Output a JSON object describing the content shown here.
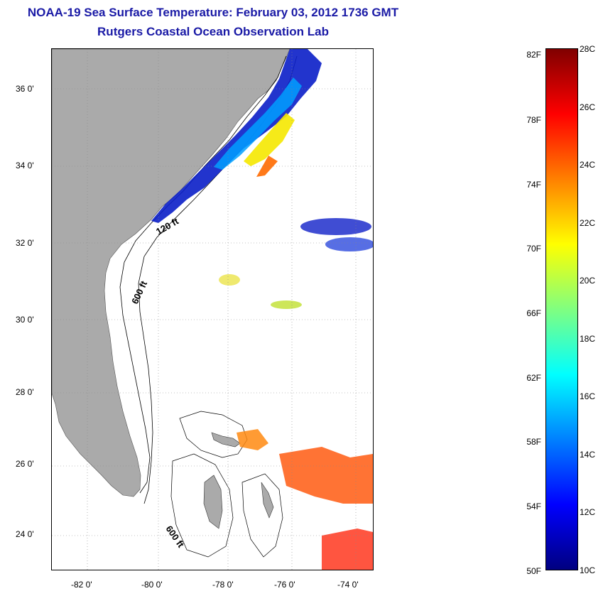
{
  "title": "NOAA-19 Sea Surface Temperature:  February 03, 2012 1736 GMT",
  "subtitle": "Rutgers Coastal Ocean Observation Lab",
  "map": {
    "lat_labels": [
      "36 0'",
      "34 0'",
      "32 0'",
      "30 0'",
      "28 0'",
      "26 0'",
      "24 0'"
    ],
    "lon_labels": [
      "-82 0'",
      "-80 0'",
      "-78 0'",
      "-76 0'",
      "-74 0'"
    ],
    "contour_labels": {
      "shelf_north": "120 ft",
      "slope_north": "600 ft",
      "slope_south": "600 ft"
    },
    "colors": {
      "land": "#aaaaaa",
      "ocean": "#ffffff",
      "grid": "#888888"
    }
  },
  "colorbar": {
    "fahrenheit_labels": [
      "82F",
      "78F",
      "74F",
      "70F",
      "66F",
      "62F",
      "58F",
      "54F",
      "50F"
    ],
    "celsius_labels": [
      "28C",
      "26C",
      "24C",
      "22C",
      "20C",
      "18C",
      "16C",
      "14C",
      "12C",
      "10C"
    ],
    "colors_top_to_bottom": [
      "#800000",
      "#ff0000",
      "#ff8000",
      "#ffff00",
      "#80ff80",
      "#00ffff",
      "#0080ff",
      "#0000ff",
      "#000080"
    ]
  }
}
